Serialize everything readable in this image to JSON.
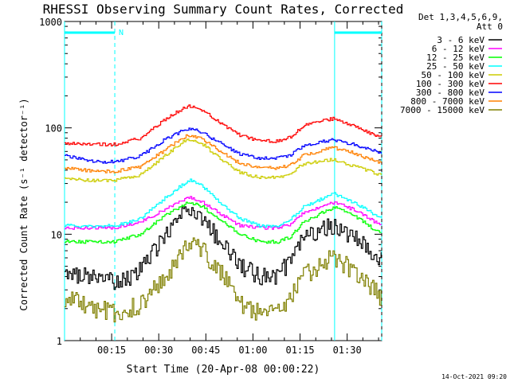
{
  "chart_data": {
    "type": "line",
    "title": "RHESSI Observing Summary Count Rates, Corrected",
    "xlabel": "Start Time (20-Apr-08 00:00:22)",
    "ylabel": "Corrected Count Rate (s⁻¹ detector⁻¹)",
    "y_scale": "log",
    "ylim": [
      1,
      1000
    ],
    "xlim_minutes": [
      0,
      101
    ],
    "y_ticks": [
      {
        "value": 1,
        "label": "1"
      },
      {
        "value": 10,
        "label": "10"
      },
      {
        "value": 100,
        "label": "100"
      },
      {
        "value": 1000,
        "label": "1000"
      }
    ],
    "x_ticks": [
      {
        "minutes": 15,
        "label": "00:15"
      },
      {
        "minutes": 30,
        "label": "00:30"
      },
      {
        "minutes": 45,
        "label": "00:45"
      },
      {
        "minutes": 60,
        "label": "01:00"
      },
      {
        "minutes": 75,
        "label": "01:15"
      },
      {
        "minutes": 90,
        "label": "01:30"
      }
    ],
    "legend_header": [
      "Det 1,3,4,5,6,9,",
      "Att 0"
    ],
    "legend_position": "right",
    "x_minutes": [
      0,
      10,
      16,
      24,
      32,
      38,
      40,
      44,
      52,
      56,
      62,
      68,
      72,
      76,
      84,
      86,
      92,
      101
    ],
    "series": [
      {
        "name": "3 - 6 keV",
        "color": "#000000",
        "values": [
          4.2,
          4.0,
          3.5,
          4.5,
          10,
          16,
          17,
          14,
          7,
          5,
          4,
          4,
          6,
          9,
          12,
          12,
          9,
          6
        ]
      },
      {
        "name": "6 - 12 keV",
        "color": "#ff00ff",
        "values": [
          11.5,
          11.5,
          11.5,
          13,
          17,
          21,
          22,
          20,
          14,
          12,
          11.5,
          11.5,
          12.5,
          16,
          19,
          20,
          17,
          12
        ]
      },
      {
        "name": "12 - 25 keV",
        "color": "#00ff00",
        "values": [
          8.5,
          8.5,
          8.5,
          10,
          15,
          19,
          20,
          18,
          12,
          10,
          8.5,
          8.5,
          9.5,
          13,
          17,
          18,
          15,
          10
        ]
      },
      {
        "name": "25 - 50 keV",
        "color": "#00ffff",
        "values": [
          12,
          12,
          12,
          14,
          22,
          30,
          32,
          28,
          17,
          14,
          12,
          12,
          14,
          18,
          23,
          24,
          20,
          14
        ]
      },
      {
        "name": "50 - 100 keV",
        "color": "#cccc00",
        "values": [
          33,
          32,
          32,
          36,
          55,
          75,
          78,
          70,
          45,
          38,
          34,
          34,
          38,
          46,
          50,
          50,
          44,
          36
        ]
      },
      {
        "name": "100 - 300 keV",
        "color": "#ff0000",
        "values": [
          72,
          70,
          70,
          80,
          120,
          155,
          160,
          145,
          100,
          85,
          75,
          75,
          82,
          105,
          120,
          122,
          105,
          80
        ]
      },
      {
        "name": "300 - 800 keV",
        "color": "#0000ff",
        "values": [
          55,
          48,
          48,
          54,
          78,
          95,
          98,
          90,
          65,
          56,
          52,
          52,
          56,
          68,
          76,
          77,
          70,
          58
        ]
      },
      {
        "name": "800 - 7000 keV",
        "color": "#ff8000",
        "values": [
          42,
          39,
          39,
          43,
          62,
          82,
          86,
          78,
          54,
          46,
          42,
          42,
          45,
          55,
          64,
          65,
          58,
          46
        ]
      },
      {
        "name": "7000 - 15000 keV",
        "color": "#808000",
        "values": [
          2.5,
          2.0,
          1.8,
          2.2,
          4,
          7,
          8,
          7,
          3.5,
          2.2,
          1.8,
          1.8,
          2.5,
          4,
          6,
          6,
          4.5,
          2.5
        ]
      }
    ],
    "markers": {
      "solid_vertical_minutes": [
        0,
        86
      ],
      "dashed_vertical_minutes": [
        16,
        101
      ],
      "top_bars_minutes": [
        [
          0,
          16
        ],
        [
          86,
          101
        ]
      ],
      "top_bar_label": "N",
      "color": "#00ffff"
    },
    "footer_date": "14-Oct-2021 09:20"
  }
}
